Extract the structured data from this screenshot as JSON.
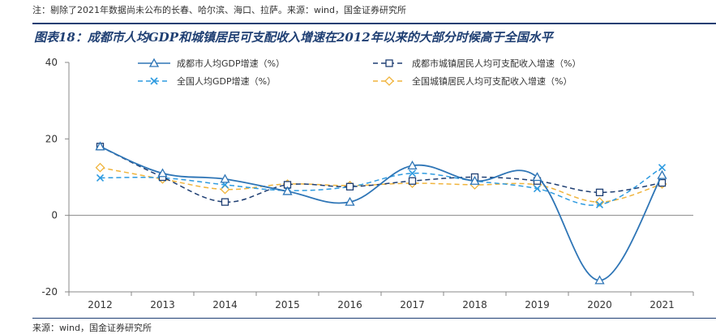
{
  "note": "注：剔除了2021年数据尚未公布的长春、哈尔滨、海口、拉萨。来源：wind，国金证券研究所",
  "figure_title": "图表18：成都市人均GDP和城镇居民可支配收入增速在2012年以来的大部分时候高于全国水平",
  "source": "来源：wind，国金证券研究所",
  "chart_data": {
    "type": "line",
    "categories": [
      "2012",
      "2013",
      "2014",
      "2015",
      "2016",
      "2017",
      "2018",
      "2019",
      "2020",
      "2021"
    ],
    "ylim": [
      -20,
      40
    ],
    "yticks": [
      -20,
      0,
      20,
      40
    ],
    "grid": false,
    "legend_position": "top",
    "series": [
      {
        "name": "成都市人均GDP增速（%）",
        "values": [
          18,
          11,
          9.5,
          6.3,
          3.5,
          13,
          9,
          10,
          -17,
          10.5
        ],
        "color": "#2e75b6",
        "style": "solid",
        "marker": "triangle"
      },
      {
        "name": "成都市城镇居民人均可支配收入增速（%）",
        "values": [
          18,
          10,
          3.5,
          8,
          7.5,
          9,
          10,
          9,
          6,
          8.5
        ],
        "color": "#1f3f73",
        "style": "dashed",
        "marker": "square"
      },
      {
        "name": "全国人均GDP增速（%）",
        "values": [
          9.8,
          9.8,
          8,
          6.5,
          7.5,
          11,
          9,
          7,
          2.8,
          12.5
        ],
        "color": "#2e9be0",
        "style": "dashed",
        "marker": "x"
      },
      {
        "name": "全国城镇居民人均可支配收入增速（%）",
        "values": [
          12.5,
          9.5,
          6.8,
          8.2,
          7.8,
          8.4,
          8,
          8,
          3.5,
          8.2
        ],
        "color": "#f0b43c",
        "style": "dashed",
        "marker": "diamond"
      }
    ]
  }
}
